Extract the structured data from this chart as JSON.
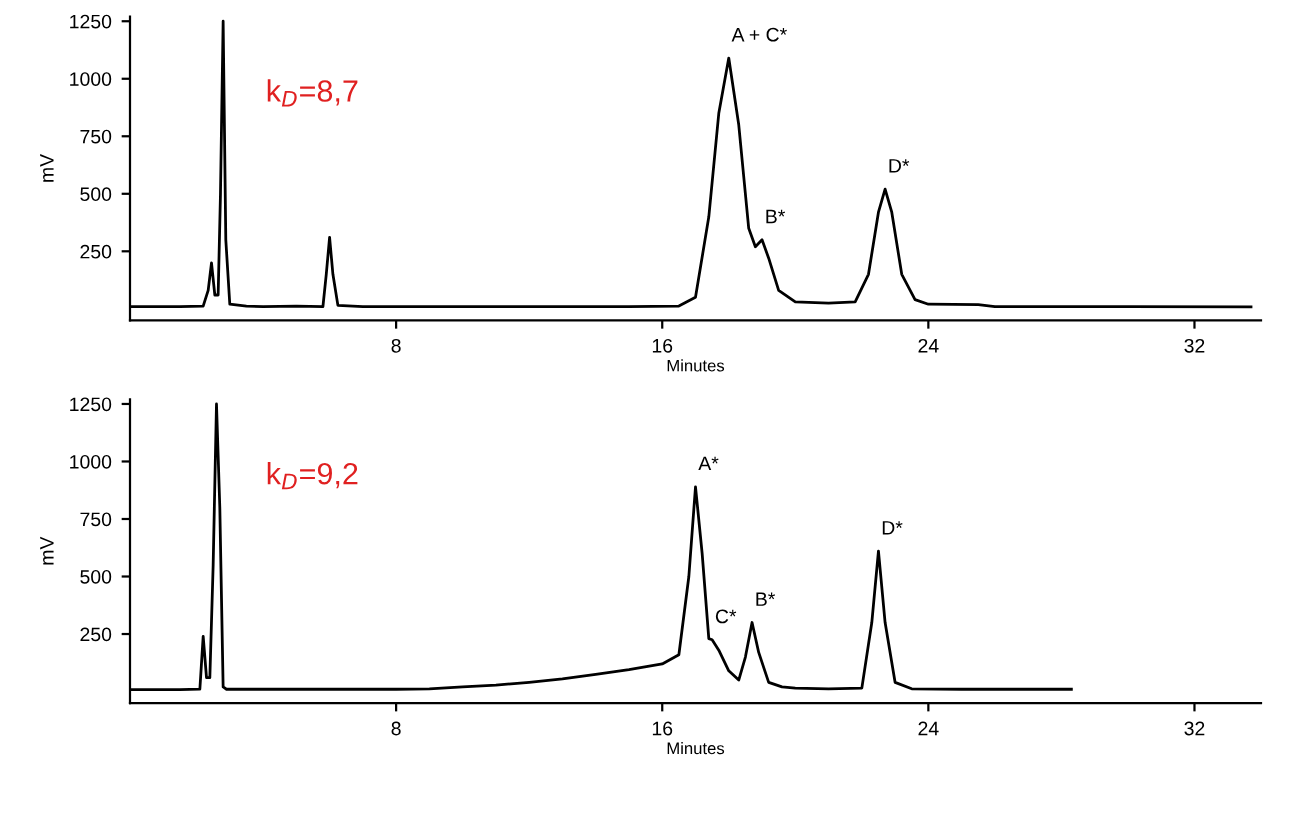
{
  "chart_data": [
    {
      "type": "line",
      "xlabel": "Minutes",
      "ylabel": "mV",
      "xlim": [
        0,
        34
      ],
      "ylim": [
        -50,
        1270
      ],
      "xticks": [
        8,
        16,
        24,
        32
      ],
      "yticks": [
        250,
        500,
        750,
        1000,
        1250
      ],
      "grid": false,
      "legend": false,
      "marker": "none",
      "line_style": "solid",
      "annotations": [
        "k$_{D}$=8,7",
        {
          "text": "A + C*",
          "x": 18.0,
          "y": 1090
        },
        {
          "text": "B*",
          "x": 19.0,
          "y": 300
        },
        {
          "text": "D*",
          "x": 22.7,
          "y": 520
        }
      ],
      "series": [
        {
          "color": "#000000",
          "x": [
            0,
            1.5,
            2.2,
            2.35,
            2.45,
            2.55,
            2.65,
            2.72,
            2.8,
            2.88,
            3.0,
            3.5,
            4,
            5,
            5.8,
            5.9,
            6.0,
            6.1,
            6.25,
            7,
            10,
            15,
            16.5,
            17,
            17.4,
            17.7,
            18.0,
            18.3,
            18.6,
            18.8,
            19.0,
            19.2,
            19.5,
            20,
            21,
            21.8,
            22.2,
            22.5,
            22.7,
            22.9,
            23.2,
            23.6,
            24,
            25.5,
            26,
            30,
            33.7
          ],
          "values": [
            10,
            10,
            12,
            80,
            200,
            60,
            60,
            500,
            1250,
            300,
            20,
            12,
            10,
            12,
            10,
            150,
            310,
            150,
            15,
            10,
            10,
            10,
            12,
            50,
            400,
            850,
            1090,
            800,
            350,
            270,
            300,
            220,
            80,
            30,
            25,
            30,
            150,
            420,
            520,
            420,
            150,
            40,
            20,
            18,
            10,
            10,
            8
          ]
        }
      ]
    },
    {
      "type": "line",
      "xlabel": "Minutes",
      "ylabel": "mV",
      "xlim": [
        0,
        34
      ],
      "ylim": [
        -50,
        1270
      ],
      "xticks": [
        8,
        16,
        24,
        32
      ],
      "yticks": [
        250,
        500,
        750,
        1000,
        1250
      ],
      "grid": false,
      "legend": false,
      "marker": "none",
      "line_style": "solid",
      "annotations": [
        "k$_{D}$=9,2",
        {
          "text": "A*",
          "x": 17.0,
          "y": 890
        },
        {
          "text": "C*",
          "x": 17.5,
          "y": 225
        },
        {
          "text": "B*",
          "x": 18.7,
          "y": 300
        },
        {
          "text": "D*",
          "x": 22.5,
          "y": 610
        }
      ],
      "series": [
        {
          "color": "#000000",
          "x": [
            0,
            1.5,
            2.1,
            2.2,
            2.3,
            2.4,
            2.5,
            2.6,
            2.7,
            2.8,
            2.9,
            4,
            6,
            8,
            9,
            10,
            11,
            12,
            13,
            14,
            15,
            16,
            16.5,
            16.8,
            17.0,
            17.2,
            17.4,
            17.5,
            17.7,
            18.0,
            18.3,
            18.5,
            18.7,
            18.9,
            19.2,
            19.6,
            20,
            21,
            22,
            22.3,
            22.5,
            22.7,
            23,
            23.5,
            25,
            28.3
          ],
          "values": [
            8,
            8,
            10,
            240,
            60,
            60,
            550,
            1250,
            800,
            20,
            10,
            10,
            10,
            10,
            12,
            20,
            28,
            40,
            55,
            75,
            95,
            120,
            160,
            500,
            890,
            600,
            230,
            225,
            180,
            90,
            50,
            150,
            300,
            170,
            40,
            20,
            15,
            12,
            15,
            300,
            610,
            300,
            40,
            12,
            10,
            10
          ]
        }
      ]
    }
  ]
}
